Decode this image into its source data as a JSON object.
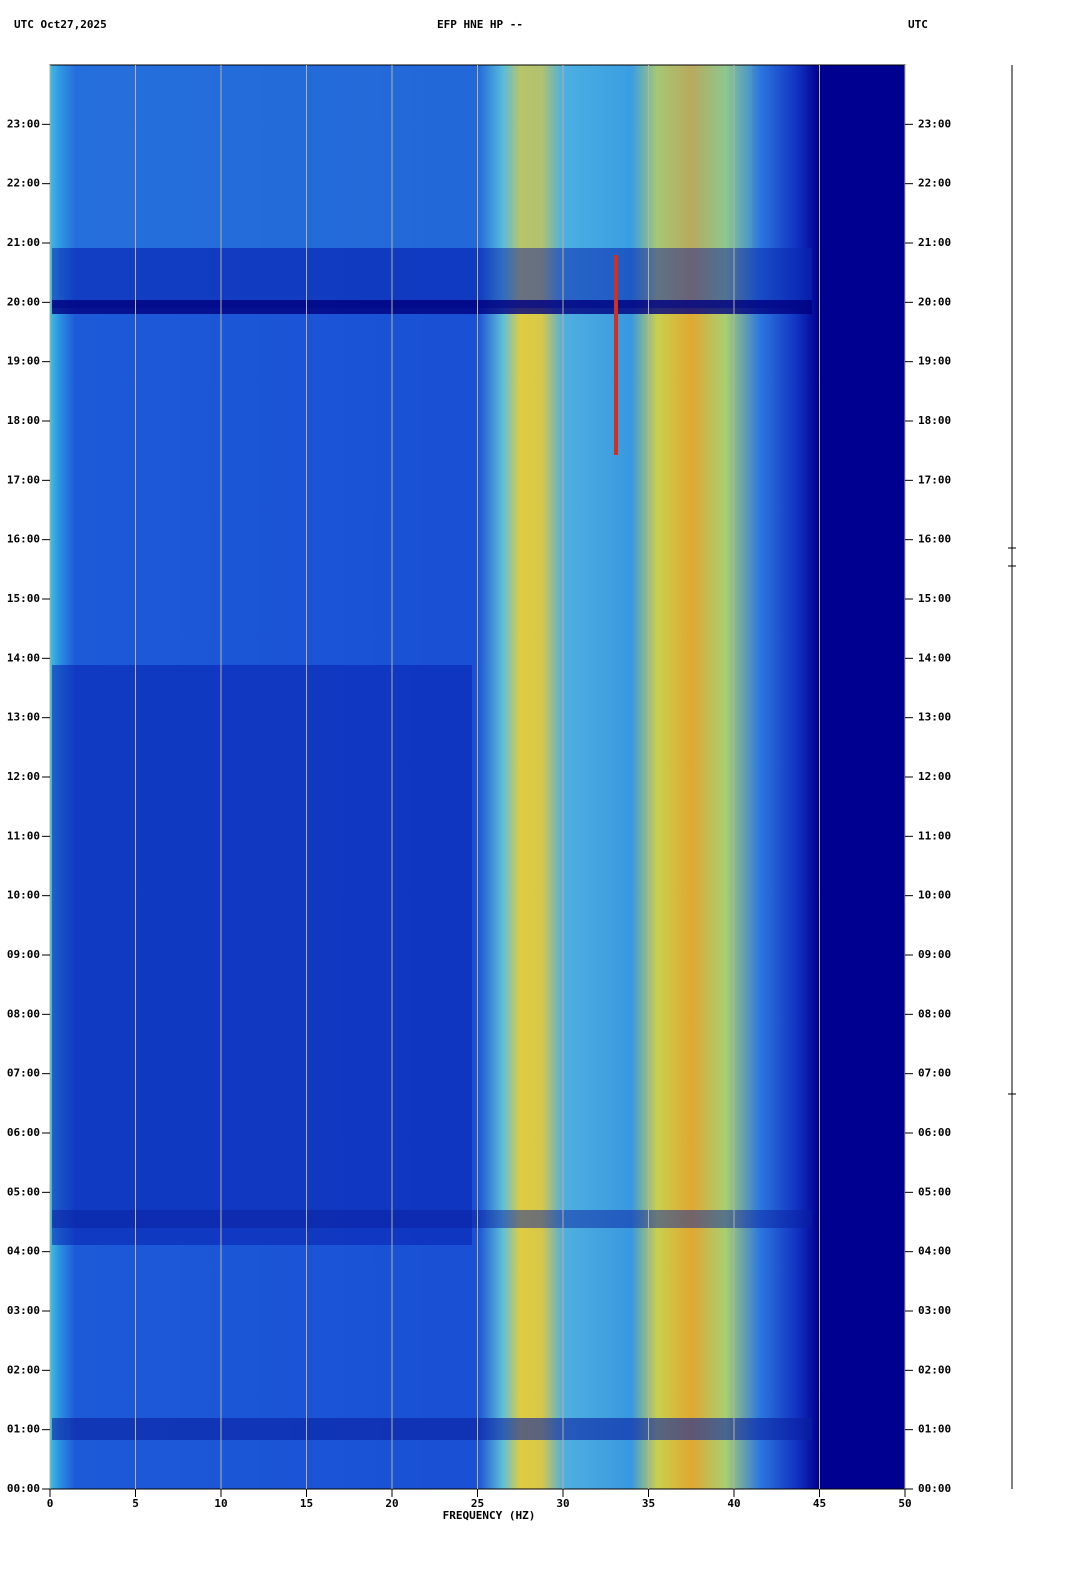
{
  "chart_data": {
    "type": "spectrogram",
    "title": "EFP HNE HP --",
    "header_left": "UTC  Oct27,2025",
    "header_right": "UTC",
    "x_label": "FREQUENCY (HZ)",
    "xlim": [
      0,
      50
    ],
    "xticks": [
      0,
      5,
      10,
      15,
      20,
      25,
      30,
      35,
      40,
      45,
      50
    ],
    "ylim": [
      0,
      24
    ],
    "yticks": [
      {
        "value": 0,
        "label": "00:00"
      },
      {
        "value": 1,
        "label": "01:00"
      },
      {
        "value": 2,
        "label": "02:00"
      },
      {
        "value": 3,
        "label": "03:00"
      },
      {
        "value": 4,
        "label": "04:00"
      },
      {
        "value": 5,
        "label": "05:00"
      },
      {
        "value": 6,
        "label": "06:00"
      },
      {
        "value": 7,
        "label": "07:00"
      },
      {
        "value": 8,
        "label": "08:00"
      },
      {
        "value": 9,
        "label": "09:00"
      },
      {
        "value": 10,
        "label": "10:00"
      },
      {
        "value": 11,
        "label": "11:00"
      },
      {
        "value": 12,
        "label": "12:00"
      },
      {
        "value": 13,
        "label": "13:00"
      },
      {
        "value": 14,
        "label": "14:00"
      },
      {
        "value": 15,
        "label": "15:00"
      },
      {
        "value": 16,
        "label": "16:00"
      },
      {
        "value": 17,
        "label": "17:00"
      },
      {
        "value": 18,
        "label": "18:00"
      },
      {
        "value": 19,
        "label": "19:00"
      },
      {
        "value": 20,
        "label": "20:00"
      },
      {
        "value": 21,
        "label": "21:00"
      },
      {
        "value": 22,
        "label": "22:00"
      },
      {
        "value": 23,
        "label": "23:00"
      }
    ],
    "grid": true
  }
}
